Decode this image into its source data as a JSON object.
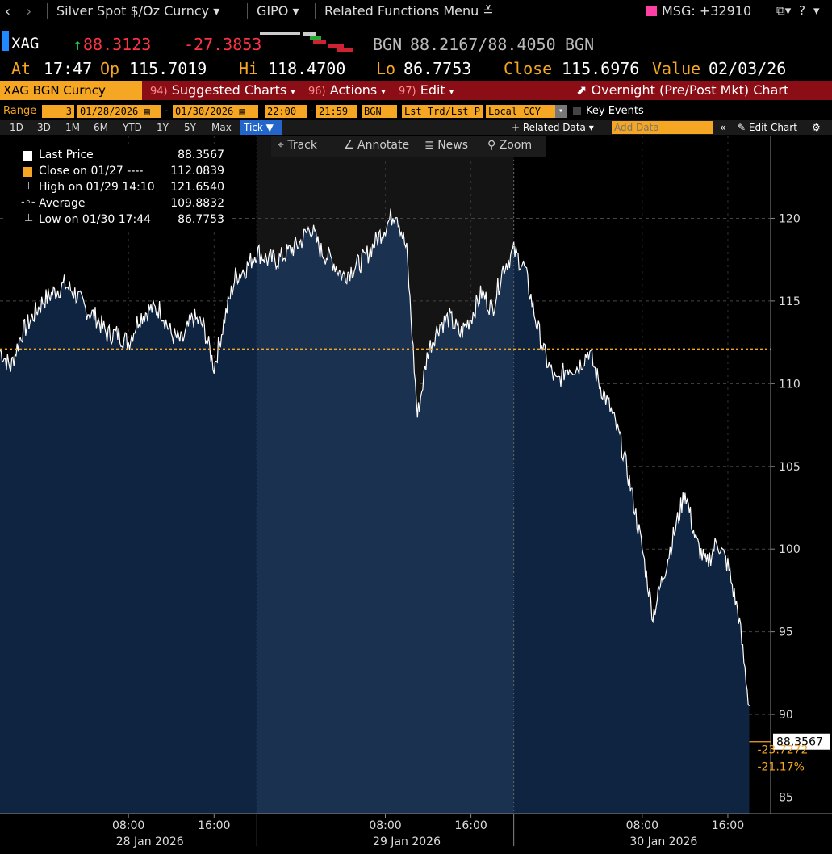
{
  "topbar": {
    "title": "Silver Spot $/Oz Curncy",
    "ticker_menu": "GIPO",
    "related": "Related Functions Menu",
    "msg": "MSG: +32910"
  },
  "quote": {
    "symbol": "XAG",
    "last": "88.3123",
    "change": "-27.3853",
    "source_label": "BGN",
    "bid_ask": "88.2167/88.4050",
    "source_label2": "BGN",
    "at_label": "At",
    "time": "17:47",
    "op_label": "Op",
    "open": "115.7019",
    "hi_label": "Hi",
    "high": "118.4700",
    "lo_label": "Lo",
    "low": "86.7753",
    "close_label": "Close",
    "close": "115.6976",
    "value_label": "Value",
    "value_date": "02/03/26"
  },
  "cmdbar": {
    "security": "XAG BGN Curncy",
    "suggested_num": "94)",
    "suggested": "Suggested Charts",
    "actions_num": "96)",
    "actions": "Actions",
    "edit_num": "97)",
    "edit": "Edit",
    "overnight": "Overnight (Pre/Post Mkt) Chart"
  },
  "range": {
    "label": "Range",
    "count": "3",
    "start": "01/28/2026",
    "dash": "-",
    "end": "01/30/2026",
    "time_from": "22:00",
    "time_to": "21:59",
    "src": "BGN",
    "field": "Lst Trd/Lst P",
    "ccy": "Local CCY",
    "key_events": "Key Events"
  },
  "periods": [
    "1D",
    "3D",
    "1M",
    "6M",
    "YTD",
    "1Y",
    "5Y",
    "Max"
  ],
  "period_active": "Tick",
  "related_data": "+ Related Data",
  "add_data_placeholder": "Add Data",
  "edit_chart": "Edit Chart",
  "tools": [
    "Track",
    "Annotate",
    "News",
    "Zoom"
  ],
  "legend": {
    "last_label": "Last Price",
    "last_value": "88.3567",
    "close_label": "Close on 01/27 ----",
    "close_value": "112.0839",
    "high_label": "High on 01/29 14:10",
    "high_value": "121.6540",
    "avg_label": "Average",
    "avg_value": "109.8832",
    "low_label": "Low on 01/30 17:44",
    "low_value": "86.7753"
  },
  "colors": {
    "accent": "#f5a623",
    "cmdbar": "#8b0e16",
    "up": "#22cc44",
    "down": "#ff3344",
    "area": "#0e2440",
    "area_shaded": "#1a3150",
    "ref_line": "#f5a623"
  },
  "chart_data": {
    "type": "area",
    "ylim": [
      84,
      125
    ],
    "yticks": [
      85,
      90,
      95,
      100,
      105,
      110,
      115,
      120
    ],
    "reference_line": 112.0839,
    "last_value": "88.3567",
    "change_abs": "-23.7272",
    "change_pct": "-21.17%",
    "x_ticks": [
      {
        "t": 10,
        "label": "08:00"
      },
      {
        "t": 18,
        "label": "16:00"
      },
      {
        "t": 34,
        "label": "08:00"
      },
      {
        "t": 42,
        "label": "16:00"
      },
      {
        "t": 58,
        "label": "08:00"
      },
      {
        "t": 66,
        "label": "16:00"
      }
    ],
    "day_labels": [
      {
        "t": 12,
        "label": "28 Jan 2026"
      },
      {
        "t": 36,
        "label": "29 Jan 2026"
      },
      {
        "t": 60,
        "label": "30 Jan 2026"
      }
    ],
    "day_boundaries": [
      22,
      46
    ],
    "session_shade": [
      22,
      46
    ],
    "x_range": [
      -2,
      70
    ],
    "series": [
      {
        "x": [
          -2,
          -1,
          0,
          1,
          2,
          3,
          4,
          5,
          6,
          7,
          8,
          9,
          10,
          11,
          12,
          13,
          14,
          15,
          16,
          17,
          18,
          19,
          20,
          21,
          22,
          23,
          24,
          25,
          26,
          27,
          28,
          29,
          30,
          31,
          32,
          33,
          34,
          35,
          36,
          37,
          38,
          39,
          40,
          41,
          42,
          43,
          44,
          45,
          46,
          47,
          48,
          49,
          50,
          51,
          52,
          53,
          54,
          55,
          56,
          57,
          58,
          59,
          60,
          61,
          62,
          63,
          64,
          65,
          66,
          67,
          68
        ],
        "y": [
          112.0,
          111.0,
          113.0,
          114.0,
          115.0,
          115.5,
          116.0,
          115.5,
          114.5,
          114.0,
          113.0,
          113.0,
          112.5,
          114.0,
          114.5,
          114.5,
          113.0,
          112.5,
          114.0,
          113.5,
          111.0,
          114.0,
          116.5,
          117.0,
          118.0,
          117.5,
          117.5,
          118.0,
          118.5,
          119.5,
          118.0,
          117.5,
          116.5,
          117.0,
          117.5,
          118.5,
          119.5,
          120.5,
          118.0,
          108.0,
          112.0,
          113.5,
          114.0,
          113.0,
          114.0,
          115.5,
          114.5,
          117.0,
          118.0,
          117.0,
          114.0,
          111.5,
          110.0,
          111.0,
          111.0,
          112.0,
          110.0,
          108.5,
          106.5,
          103.5,
          100.0,
          96.0,
          98.5,
          101.0,
          103.5,
          100.5,
          99.0,
          100.5,
          99.0,
          96.0,
          90.5
        ]
      }
    ]
  }
}
